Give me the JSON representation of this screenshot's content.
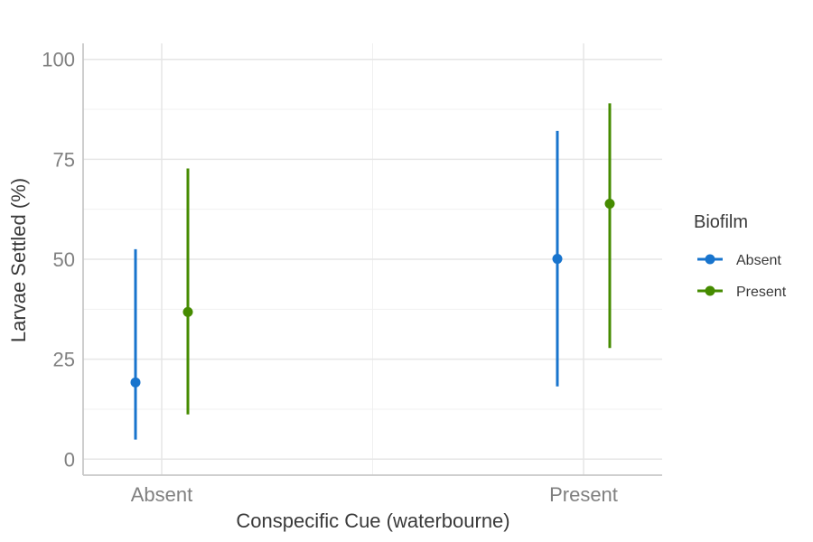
{
  "chart_data": {
    "type": "pointrange",
    "xlabel": "Conspecific Cue (waterbourne)",
    "ylabel": "Larvae Settled (%)",
    "categories": [
      "Absent",
      "Present"
    ],
    "ylim": [
      -4,
      104
    ],
    "yticks": [
      0,
      25,
      50,
      75,
      100
    ],
    "grid": true,
    "legend": {
      "title": "Biofilm",
      "placement": "right"
    },
    "series": [
      {
        "name": "Absent",
        "color": "#1874CD",
        "points": [
          {
            "x": "Absent",
            "y": 19.2,
            "lower": 4.9,
            "upper": 52.5
          },
          {
            "x": "Present",
            "y": 50.1,
            "lower": 18.2,
            "upper": 82.1
          }
        ]
      },
      {
        "name": "Present",
        "color": "#458B00",
        "points": [
          {
            "x": "Absent",
            "y": 36.8,
            "lower": 11.2,
            "upper": 72.7
          },
          {
            "x": "Present",
            "y": 63.9,
            "lower": 27.8,
            "upper": 89.0
          }
        ]
      }
    ]
  }
}
